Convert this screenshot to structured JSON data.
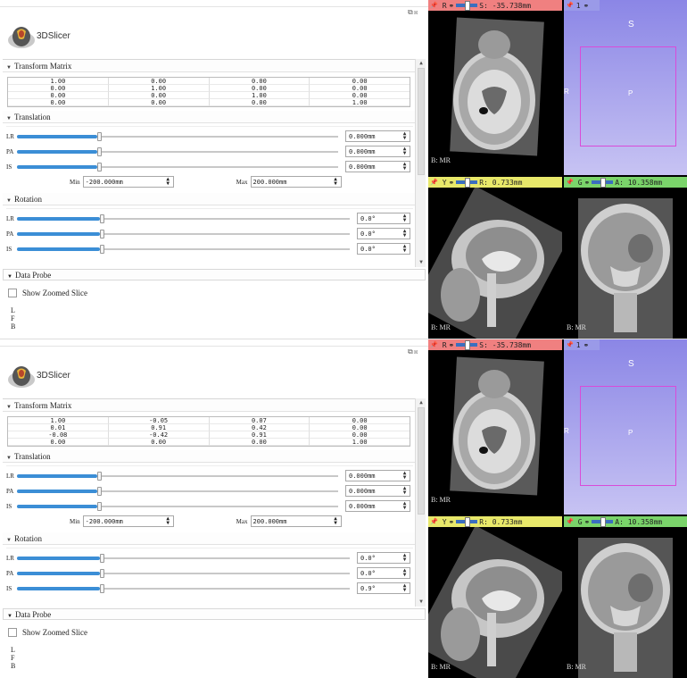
{
  "app": {
    "logo_text": "3DSlicer",
    "float_icons": "⧉☒"
  },
  "screens": [
    {
      "transform_section": "Transform Matrix",
      "matrix": [
        [
          "1.00",
          "0.00",
          "0.00",
          "0.00"
        ],
        [
          "0.00",
          "1.00",
          "0.00",
          "0.00"
        ],
        [
          "0.00",
          "0.00",
          "1.00",
          "0.00"
        ],
        [
          "0.00",
          "0.00",
          "0.00",
          "1.00"
        ]
      ],
      "translation_section": "Translation",
      "translation": [
        {
          "label": "LR",
          "value": "0.000mm",
          "level": 0.5
        },
        {
          "label": "PA",
          "value": "0.000mm",
          "level": 0.5
        },
        {
          "label": "IS",
          "value": "0.000mm",
          "level": 0.5
        }
      ],
      "min_label": "Min",
      "min_value": "-200.000mm",
      "max_label": "Max",
      "max_value": "200.000mm",
      "rotation_section": "Rotation",
      "rotation": [
        {
          "label": "LR",
          "value": "0.0°",
          "level": 0.5
        },
        {
          "label": "PA",
          "value": "0.0°",
          "level": 0.5
        },
        {
          "label": "IS",
          "value": "0.0°",
          "level": 0.5
        }
      ],
      "probe_section": "Data Probe",
      "show_zoomed": "Show Zoomed Slice",
      "probe_lines": [
        "L",
        "F",
        "B"
      ],
      "views": {
        "red": {
          "letter": "R",
          "readout": "S: -35.738mm",
          "bottom_label": "B: MR"
        },
        "threed": {
          "number": "1",
          "labels": {
            "s": "S",
            "p": "P",
            "r": "R"
          }
        },
        "yellow": {
          "letter": "Y",
          "readout": "R: 0.733mm",
          "bottom_label": "B: MR"
        },
        "green": {
          "letter": "G",
          "readout": "A: 10.358mm",
          "bottom_label": "B: MR"
        }
      }
    },
    {
      "transform_section": "Transform Matrix",
      "matrix": [
        [
          "1.00",
          "-0.05",
          "0.07",
          "0.00"
        ],
        [
          "0.01",
          "0.91",
          "0.42",
          "0.00"
        ],
        [
          "-0.08",
          "-0.42",
          "0.91",
          "0.00"
        ],
        [
          "0.00",
          "0.00",
          "0.00",
          "1.00"
        ]
      ],
      "translation_section": "Translation",
      "translation": [
        {
          "label": "LR",
          "value": "0.000mm",
          "level": 0.5
        },
        {
          "label": "PA",
          "value": "0.000mm",
          "level": 0.5
        },
        {
          "label": "IS",
          "value": "0.000mm",
          "level": 0.5
        }
      ],
      "min_label": "Min",
      "min_value": "-200.000mm",
      "max_label": "Max",
      "max_value": "200.000mm",
      "rotation_section": "Rotation",
      "rotation": [
        {
          "label": "LR",
          "value": "0.0°",
          "level": 0.5
        },
        {
          "label": "PA",
          "value": "0.0°",
          "level": 0.5
        },
        {
          "label": "IS",
          "value": "0.9°",
          "level": 0.5
        }
      ],
      "probe_section": "Data Probe",
      "show_zoomed": "Show Zoomed Slice",
      "probe_lines": [
        "L",
        "F",
        "B"
      ],
      "views": {
        "red": {
          "letter": "R",
          "readout": "S: -35.738mm",
          "bottom_label": "B: MR"
        },
        "threed": {
          "number": "1",
          "labels": {
            "s": "S",
            "p": "P",
            "r": "R"
          }
        },
        "yellow": {
          "letter": "Y",
          "readout": "R: 0.733mm",
          "bottom_label": "B: MR"
        },
        "green": {
          "letter": "G",
          "readout": "A: 10.358mm",
          "bottom_label": "B: MR"
        }
      }
    }
  ],
  "colors": {
    "red_bar": "#f08080",
    "yellow_bar": "#e8e86a",
    "green_bar": "#7ad46a",
    "threed_bar": "#9a9ae8",
    "slider_fill": "#3b8ed6"
  }
}
